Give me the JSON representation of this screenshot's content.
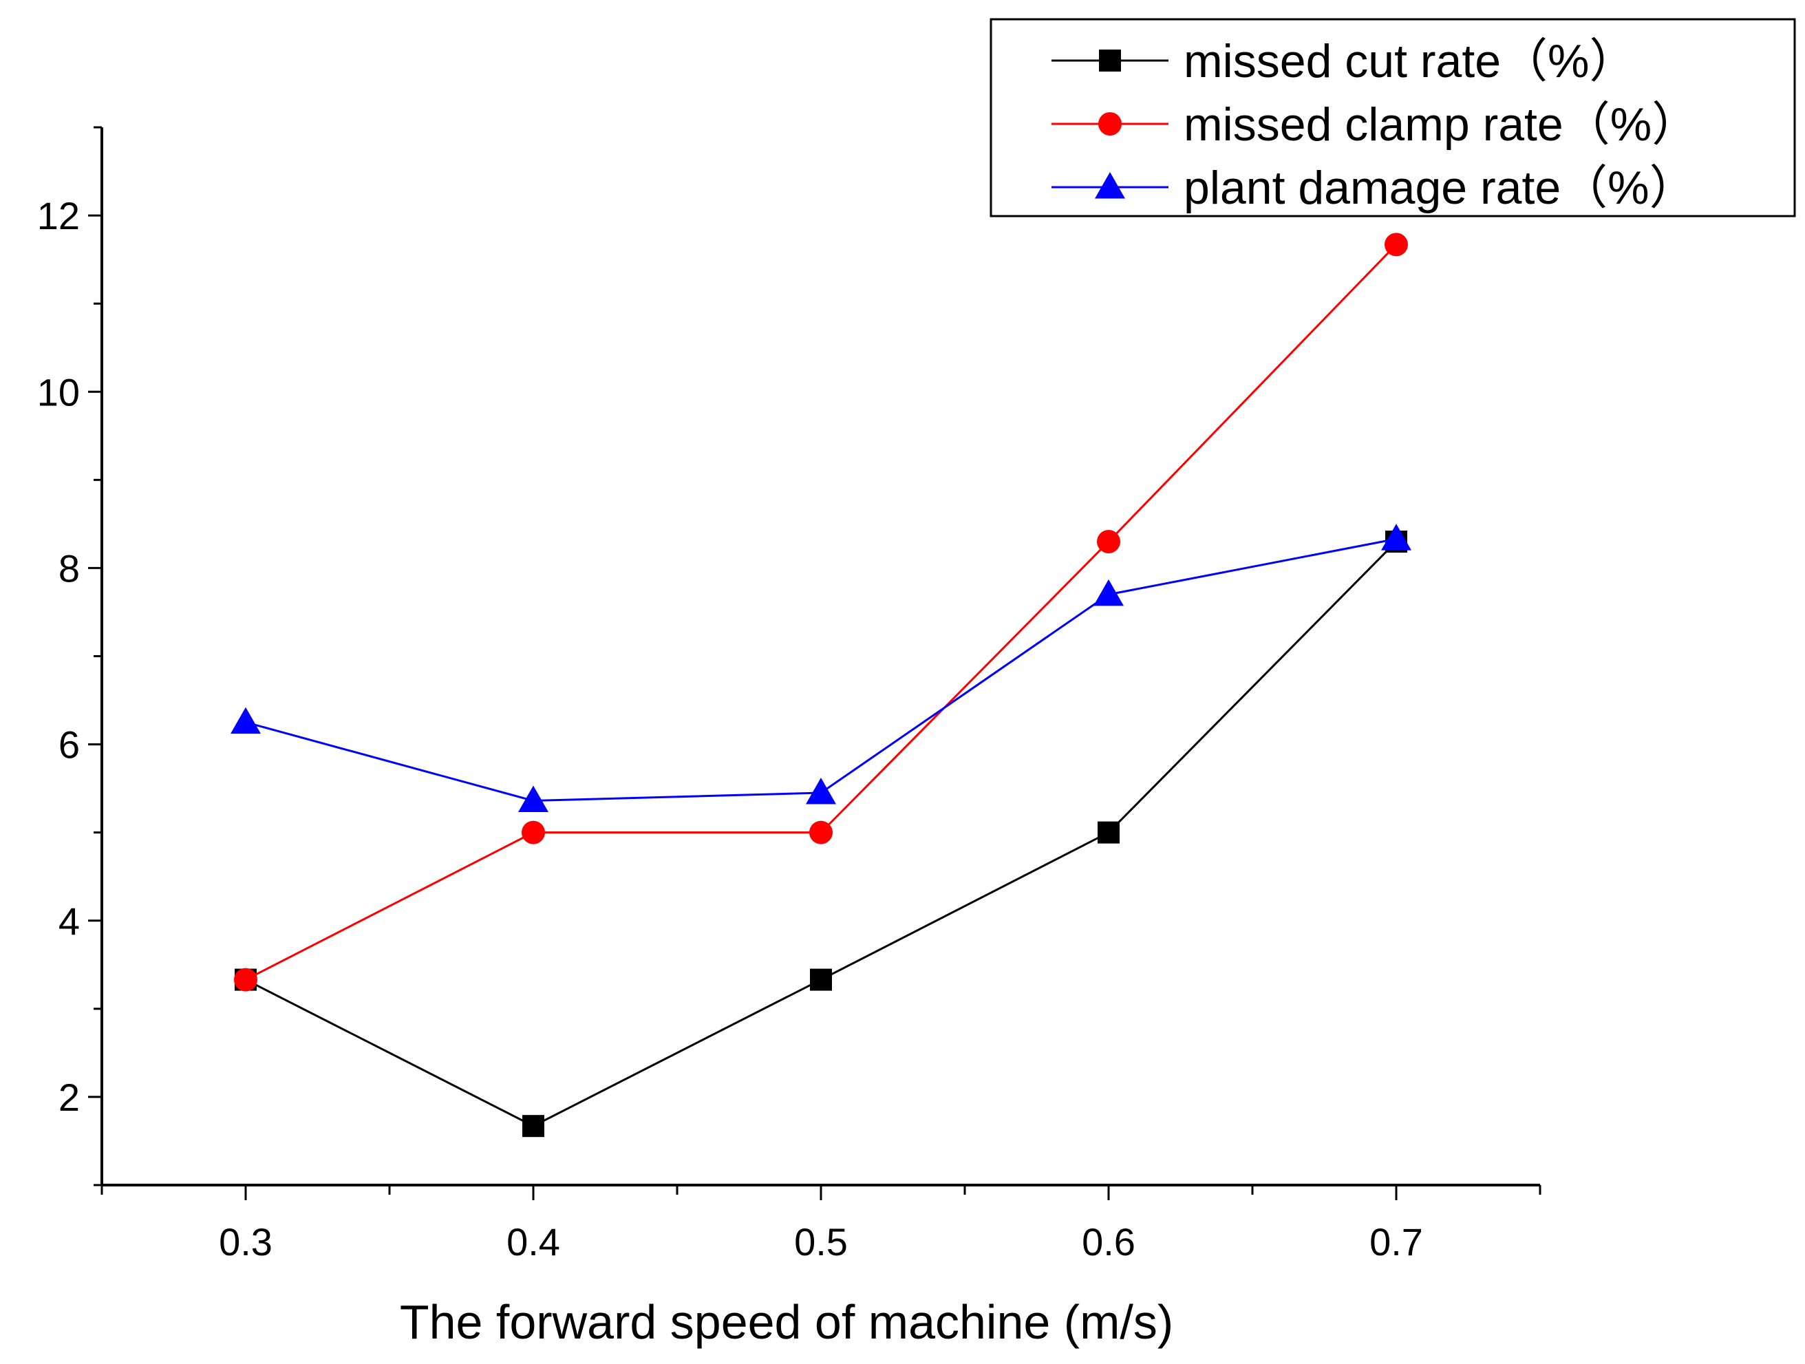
{
  "chart_data": {
    "type": "line",
    "title": "",
    "xlabel": "The forward speed of machine (m/s)",
    "ylabel": "",
    "x": [
      0.3,
      0.4,
      0.5,
      0.6,
      0.7
    ],
    "x_tick_labels": [
      "0.3",
      "0.4",
      "0.5",
      "0.6",
      "0.7"
    ],
    "y_tick_labels": [
      "2",
      "4",
      "6",
      "8",
      "10",
      "12"
    ],
    "xlim": [
      0.25,
      0.75
    ],
    "ylim": [
      1.0,
      13.0
    ],
    "grid": false,
    "legend_position": "top-right",
    "series": [
      {
        "name": "missed cut rate（%）",
        "values": [
          3.33,
          1.67,
          3.33,
          5.0,
          8.3
        ],
        "color": "#000000",
        "marker": "square"
      },
      {
        "name": "missed clamp rate（%）",
        "values": [
          3.33,
          5.0,
          5.0,
          8.3,
          11.67
        ],
        "color": "#ff0000",
        "marker": "circle"
      },
      {
        "name": "plant damage rate（%）",
        "values": [
          6.25,
          5.36,
          5.45,
          7.7,
          8.33
        ],
        "color": "#0000ff",
        "marker": "triangle"
      }
    ]
  }
}
